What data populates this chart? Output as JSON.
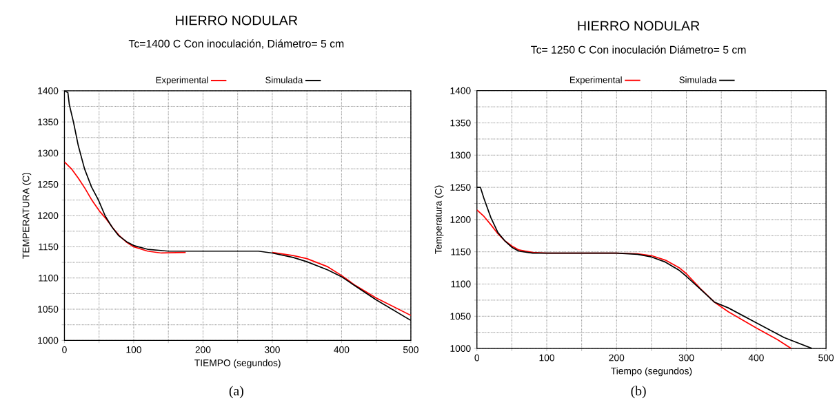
{
  "chart_data": [
    {
      "type": "line",
      "title": "HIERRO NODULAR",
      "subtitle": "Tc=1400 C   Con inoculación, Diámetro= 5 cm",
      "xlabel": "TIEMPO (segundos)",
      "ylabel": "TEMPERATURA (C)",
      "annotations": [
        "(a)"
      ],
      "xlim": [
        0,
        500
      ],
      "ylim": [
        1000,
        1400
      ],
      "xticks": [
        0,
        {
          "value": 50,
          "label": null
        },
        100,
        {
          "value": 150,
          "label": null
        },
        200,
        {
          "value": 250,
          "label": null
        },
        300,
        {
          "value": 350,
          "label": null
        },
        400,
        {
          "value": 450,
          "label": null
        },
        500
      ],
      "yticks": [
        1000,
        {
          "value": 1025,
          "label": null
        },
        1050,
        {
          "value": 1075,
          "label": null
        },
        1100,
        {
          "value": 1125,
          "label": null
        },
        1150,
        {
          "value": 1175,
          "label": null
        },
        1200,
        {
          "value": 1225,
          "label": null
        },
        1250,
        {
          "value": 1275,
          "label": null
        },
        1300,
        {
          "value": 1325,
          "label": null
        },
        1350,
        {
          "value": 1375,
          "label": null
        },
        1400
      ],
      "grid": true,
      "legend": "top",
      "line_style": "solid",
      "series": [
        {
          "name": "Experimental",
          "color": "#ff0000",
          "x": [
            0,
            10,
            20,
            30,
            40,
            50,
            60,
            70,
            80,
            90,
            100,
            120,
            140,
            175,
            225,
            300,
            330,
            350,
            380,
            400,
            420,
            450,
            500
          ],
          "values": [
            1286,
            1275,
            1260,
            1243,
            1224,
            1208,
            1195,
            1180,
            1167,
            1157,
            1150,
            1143,
            1140,
            1141,
            null,
            1141,
            1136,
            1131,
            1118,
            1104,
            1088,
            1068,
            1040
          ]
        },
        {
          "name": "Simulada",
          "color": "#000000",
          "x": [
            0,
            5,
            7,
            13,
            20,
            29,
            39,
            49,
            59,
            69,
            78,
            90,
            100,
            120,
            150,
            200,
            280,
            300,
            330,
            350,
            380,
            400,
            420,
            450,
            500
          ],
          "values": [
            1400,
            1397,
            1378,
            1350,
            1312,
            1275,
            1246,
            1225,
            1199,
            1181,
            1168,
            1158,
            1152,
            1146,
            1143,
            1143,
            1143,
            1140,
            1133,
            1126,
            1113,
            1102,
            1087,
            1065,
            1032
          ]
        }
      ]
    },
    {
      "type": "line",
      "title": "HIERRO NODULAR",
      "subtitle": "Tc= 1250 C  Con inoculación Diámetro= 5 cm",
      "xlabel": "Tiempo (segundos)",
      "ylabel": "Temperatura (C)",
      "annotations": [
        "(b)"
      ],
      "xlim": [
        0,
        500
      ],
      "ylim": [
        1000,
        1400
      ],
      "xticks": [
        0,
        {
          "value": 50,
          "label": null
        },
        100,
        {
          "value": 150,
          "label": null
        },
        200,
        {
          "value": 250,
          "label": null
        },
        300,
        {
          "value": 350,
          "label": null
        },
        400,
        {
          "value": 450,
          "label": null
        },
        500
      ],
      "yticks": [
        1000,
        {
          "value": 1025,
          "label": null
        },
        1050,
        {
          "value": 1075,
          "label": null
        },
        1100,
        {
          "value": 1125,
          "label": null
        },
        1150,
        {
          "value": 1175,
          "label": null
        },
        1200,
        {
          "value": 1225,
          "label": null
        },
        1250,
        {
          "value": 1275,
          "label": null
        },
        1300,
        {
          "value": 1325,
          "label": null
        },
        1350,
        {
          "value": 1375,
          "label": null
        },
        1400
      ],
      "grid": true,
      "legend": "top",
      "line_style": "solid",
      "series": [
        {
          "name": "Experimental",
          "color": "#ff0000",
          "x": [
            0,
            10,
            20,
            30,
            40,
            50,
            60,
            80,
            100,
            200,
            230,
            250,
            270,
            290,
            300,
            320,
            340,
            360,
            400,
            430,
            450
          ],
          "values": [
            1215,
            1205,
            1192,
            1178,
            1167,
            1159,
            1153,
            1149,
            1148,
            1148,
            1147,
            1144,
            1137,
            1125,
            1116,
            1093,
            1072,
            1057,
            1032,
            1014,
            1000
          ]
        },
        {
          "name": "Simulada",
          "color": "#000000",
          "x": [
            0,
            5,
            10,
            20,
            30,
            40,
            50,
            60,
            80,
            100,
            200,
            230,
            250,
            270,
            290,
            300,
            320,
            340,
            360,
            400,
            440,
            480
          ],
          "values": [
            1250,
            1250,
            1233,
            1203,
            1180,
            1167,
            1157,
            1151,
            1148,
            1148,
            1148,
            1146,
            1142,
            1134,
            1121,
            1112,
            1092,
            1072,
            1063,
            1040,
            1017,
            1000
          ]
        }
      ]
    }
  ]
}
